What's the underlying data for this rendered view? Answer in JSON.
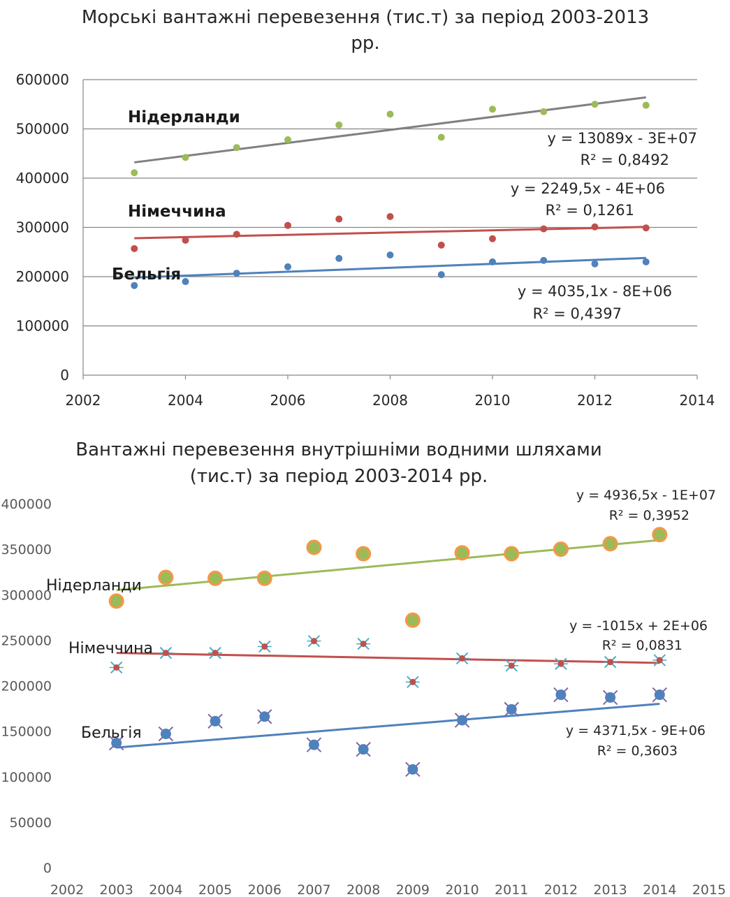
{
  "chart_data": [
    {
      "type": "scatter",
      "title_line1": "Морські вантажні перевезення  (тис.т) за період 2003-2013",
      "title_line2": "рр.",
      "xlim": [
        2002,
        2014
      ],
      "ylim": [
        0,
        600000
      ],
      "x_ticks": [
        "2002",
        "2004",
        "2006",
        "2008",
        "2010",
        "2012",
        "2014"
      ],
      "y_ticks": [
        "0",
        "100000",
        "200000",
        "300000",
        "400000",
        "500000",
        "600000"
      ],
      "grid": "horizontal",
      "x": [
        2003,
        2004,
        2005,
        2006,
        2007,
        2008,
        2009,
        2010,
        2011,
        2012,
        2013
      ],
      "series": [
        {
          "name": "Нідерланди",
          "color": "#9bbb59",
          "trend_color": "#808080",
          "values": [
            411000,
            442000,
            462000,
            478000,
            508000,
            530000,
            483000,
            540000,
            535000,
            550000,
            548000
          ],
          "trend": [
            432000,
            564000
          ],
          "equation": "y = 13089x - 3E+07",
          "r2": "R² = 0,8492"
        },
        {
          "name": "Німеччина",
          "color": "#c0504d",
          "trend_color": "#c0504d",
          "values": [
            257000,
            274000,
            286000,
            304000,
            317000,
            322000,
            264000,
            277000,
            297000,
            301000,
            299000
          ],
          "trend": [
            278000,
            301000
          ],
          "equation": "y = 2249,5x - 4E+06",
          "r2": "R² = 0,1261"
        },
        {
          "name": "Бельгія",
          "color": "#4f81bd",
          "trend_color": "#4f81bd",
          "values": [
            182000,
            190000,
            207000,
            220000,
            237000,
            244000,
            204000,
            230000,
            233000,
            226000,
            230000
          ],
          "trend": [
            198000,
            238000
          ],
          "equation": "y = 4035,1x - 8E+06",
          "r2": "R² = 0,4397"
        }
      ]
    },
    {
      "type": "scatter",
      "title_line1": "Вантажні перевезення внутрішніми водними шляхами",
      "title_line2": "(тис.т) за період 2003-2014 рр.",
      "xlim": [
        2002,
        2015
      ],
      "ylim": [
        0,
        400000
      ],
      "x_ticks": [
        "2002",
        "2003",
        "2004",
        "2005",
        "2006",
        "2007",
        "2008",
        "2009",
        "2010",
        "2011",
        "2012",
        "2013",
        "2014",
        "2015"
      ],
      "y_ticks": [
        "0",
        "50000",
        "100000",
        "150000",
        "200000",
        "250000",
        "300000",
        "350000",
        "400000"
      ],
      "grid": "none",
      "x": [
        2003,
        2004,
        2005,
        2006,
        2007,
        2008,
        2009,
        2010,
        2011,
        2012,
        2013,
        2014
      ],
      "series": [
        {
          "name": "Нідерланди",
          "color": "#9bbb59",
          "marker_edge": "#f79646",
          "trend_color": "#9bbb59",
          "values": [
            293000,
            319000,
            318000,
            318000,
            352000,
            345000,
            272000,
            346000,
            345000,
            350000,
            356000,
            366000
          ],
          "trend": [
            305000,
            360000
          ],
          "equation": "y = 4936,5x - 1E+07",
          "r2": "R² = 0,3952"
        },
        {
          "name": "Німеччина",
          "color": "#c0504d",
          "marker_edge": "#4bacc6",
          "trend_color": "#c0504d",
          "values": [
            220000,
            236000,
            236000,
            243000,
            249000,
            246000,
            204000,
            230000,
            222000,
            224000,
            226000,
            228000
          ],
          "trend": [
            236000,
            225000
          ],
          "equation": "y = -1015x + 2E+06",
          "r2": "R² = 0,0831"
        },
        {
          "name": "Бельгія",
          "color": "#4f81bd",
          "marker_edge": "#8064a2",
          "trend_color": "#4f81bd",
          "values": [
            137000,
            147000,
            161000,
            166000,
            135000,
            130000,
            108000,
            162000,
            174000,
            190000,
            187000,
            190000
          ],
          "trend": [
            132000,
            180000
          ],
          "equation": "y = 4371,5x - 9E+06",
          "r2": "R² = 0,3603"
        }
      ]
    }
  ]
}
